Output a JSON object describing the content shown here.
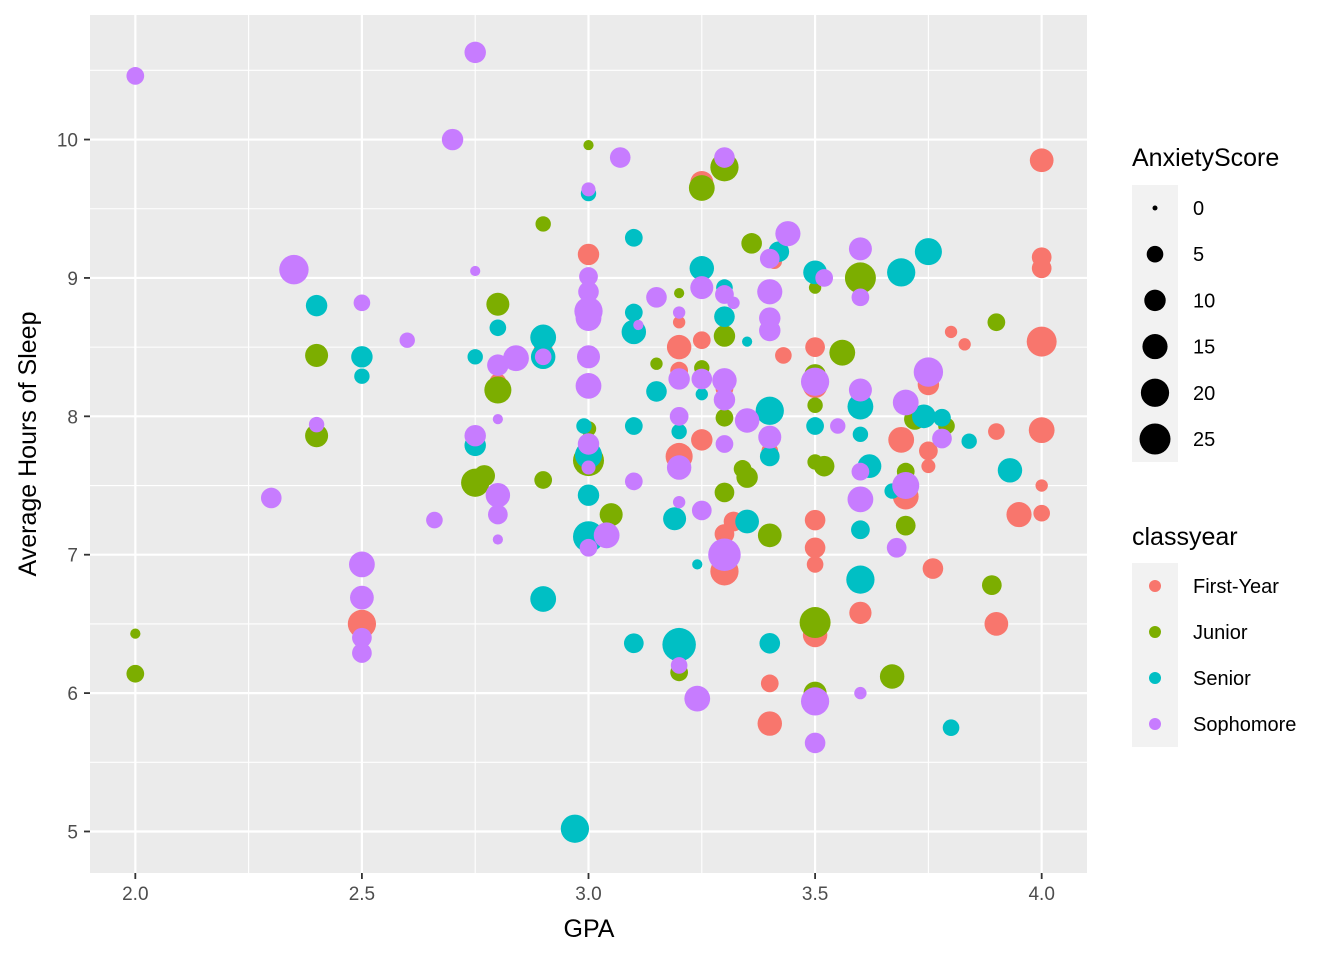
{
  "chart_data": {
    "type": "scatter",
    "xlabel": "GPA",
    "ylabel": "Average Hours of Sleep",
    "xlim": [
      1.9,
      4.1
    ],
    "ylim": [
      4.7,
      10.9
    ],
    "x_ticks": [
      2.0,
      2.5,
      3.0,
      3.5,
      4.0
    ],
    "x_tick_labels": [
      "2.0",
      "2.5",
      "3.0",
      "3.5",
      "4.0"
    ],
    "y_ticks": [
      5,
      6,
      7,
      8,
      9,
      10
    ],
    "y_tick_labels": [
      "5",
      "6",
      "7",
      "8",
      "9",
      "10"
    ],
    "grid": true,
    "legend_position": "right",
    "size_legend": {
      "title": "AnxietyScore",
      "items": [
        {
          "label": "0",
          "value": 0
        },
        {
          "label": "5",
          "value": 5
        },
        {
          "label": "10",
          "value": 10
        },
        {
          "label": "15",
          "value": 15
        },
        {
          "label": "20",
          "value": 20
        },
        {
          "label": "25",
          "value": 25
        }
      ]
    },
    "color_legend": {
      "title": "classyear",
      "items": [
        {
          "label": "First-Year",
          "color": "#F8766D"
        },
        {
          "label": "Junior",
          "color": "#7CAE00"
        },
        {
          "label": "Senior",
          "color": "#00BFC4"
        },
        {
          "label": "Sophomore",
          "color": "#C77CFF"
        }
      ]
    },
    "series": [
      {
        "name": "First-Year",
        "color": "#F8766D",
        "points": [
          [
            2.5,
            6.5,
            20
          ],
          [
            2.8,
            8.25,
            5
          ],
          [
            2.9,
            8.47,
            8
          ],
          [
            3.0,
            9.17,
            10
          ],
          [
            3.2,
            8.5,
            14
          ],
          [
            3.2,
            8.68,
            2
          ],
          [
            3.2,
            7.71,
            18
          ],
          [
            3.2,
            8.33,
            6
          ],
          [
            3.25,
            7.83,
            10
          ],
          [
            3.25,
            9.69,
            12
          ],
          [
            3.25,
            8.55,
            6
          ],
          [
            3.3,
            6.88,
            20
          ],
          [
            3.3,
            7.15,
            8
          ],
          [
            3.3,
            8.2,
            6
          ],
          [
            3.32,
            7.24,
            8
          ],
          [
            3.4,
            6.07,
            6
          ],
          [
            3.4,
            5.78,
            14
          ],
          [
            3.4,
            7.75,
            5
          ],
          [
            3.41,
            9.12,
            4
          ],
          [
            3.43,
            8.44,
            5
          ],
          [
            3.5,
            8.5,
            8
          ],
          [
            3.5,
            7.25,
            9
          ],
          [
            3.5,
            7.05,
            9
          ],
          [
            3.5,
            6.93,
            5
          ],
          [
            3.5,
            6.42,
            14
          ],
          [
            3.5,
            8.22,
            14
          ],
          [
            3.6,
            6.58,
            11
          ],
          [
            3.69,
            7.83,
            16
          ],
          [
            3.7,
            7.42,
            16
          ],
          [
            3.75,
            8.23,
            10
          ],
          [
            3.75,
            7.75,
            7
          ],
          [
            3.75,
            7.64,
            3
          ],
          [
            3.76,
            6.9,
            9
          ],
          [
            3.8,
            8.61,
            2
          ],
          [
            3.83,
            8.52,
            2
          ],
          [
            3.9,
            7.89,
            5
          ],
          [
            3.9,
            6.5,
            13
          ],
          [
            3.95,
            7.29,
            15
          ],
          [
            4.0,
            9.85,
            13
          ],
          [
            4.0,
            9.15,
            8
          ],
          [
            4.0,
            9.07,
            8
          ],
          [
            4.0,
            8.54,
            23
          ],
          [
            4.0,
            7.9,
            16
          ],
          [
            4.0,
            7.5,
            2
          ],
          [
            4.0,
            7.3,
            5
          ]
        ]
      },
      {
        "name": "Junior",
        "color": "#7CAE00",
        "points": [
          [
            2.0,
            6.43,
            1
          ],
          [
            2.0,
            6.14,
            6
          ],
          [
            2.4,
            8.44,
            12
          ],
          [
            2.4,
            7.86,
            12
          ],
          [
            2.75,
            7.52,
            20
          ],
          [
            2.77,
            7.57,
            10
          ],
          [
            2.8,
            8.81,
            12
          ],
          [
            2.8,
            8.19,
            18
          ],
          [
            2.9,
            9.39,
            4
          ],
          [
            2.9,
            7.54,
            6
          ],
          [
            3.0,
            9.96,
            1
          ],
          [
            3.0,
            8.18,
            2
          ],
          [
            3.0,
            7.91,
            4
          ],
          [
            3.0,
            7.68,
            25
          ],
          [
            3.0,
            7.43,
            8
          ],
          [
            3.05,
            7.29,
            12
          ],
          [
            3.15,
            8.38,
            2
          ],
          [
            3.2,
            8.89,
            1
          ],
          [
            3.2,
            6.15,
            6
          ],
          [
            3.25,
            9.65,
            16
          ],
          [
            3.25,
            8.35,
            4
          ],
          [
            3.3,
            9.8,
            20
          ],
          [
            3.3,
            8.58,
            10
          ],
          [
            3.3,
            7.99,
            6
          ],
          [
            3.3,
            7.45,
            8
          ],
          [
            3.34,
            7.62,
            6
          ],
          [
            3.35,
            7.56,
            10
          ],
          [
            3.36,
            9.25,
            9
          ],
          [
            3.4,
            7.14,
            13
          ],
          [
            3.5,
            8.93,
            2
          ],
          [
            3.5,
            8.3,
            10
          ],
          [
            3.5,
            8.08,
            4
          ],
          [
            3.5,
            7.67,
            4
          ],
          [
            3.5,
            6.51,
            25
          ],
          [
            3.5,
            6.0,
            12
          ],
          [
            3.52,
            7.64,
            9
          ],
          [
            3.56,
            8.46,
            16
          ],
          [
            3.6,
            9.0,
            25
          ],
          [
            3.67,
            6.12,
            14
          ],
          [
            3.7,
            7.6,
            6
          ],
          [
            3.7,
            7.21,
            8
          ],
          [
            3.72,
            7.98,
            10
          ],
          [
            3.79,
            7.93,
            5
          ],
          [
            3.89,
            6.78,
            8
          ],
          [
            3.9,
            8.68,
            6
          ]
        ]
      },
      {
        "name": "Senior",
        "color": "#00BFC4",
        "points": [
          [
            2.4,
            8.8,
            10
          ],
          [
            2.5,
            8.43,
            10
          ],
          [
            2.5,
            8.29,
            4
          ],
          [
            2.75,
            8.43,
            4
          ],
          [
            2.75,
            7.79,
            10
          ],
          [
            2.8,
            8.64,
            5
          ],
          [
            2.9,
            8.57,
            16
          ],
          [
            2.9,
            8.43,
            14
          ],
          [
            2.9,
            6.68,
            16
          ],
          [
            2.97,
            5.02,
            20
          ],
          [
            2.99,
            7.93,
            4
          ],
          [
            3.0,
            9.61,
            4
          ],
          [
            3.0,
            7.72,
            18
          ],
          [
            3.0,
            7.43,
            10
          ],
          [
            3.0,
            7.13,
            25
          ],
          [
            3.1,
            9.29,
            6
          ],
          [
            3.1,
            8.75,
            6
          ],
          [
            3.1,
            8.61,
            14
          ],
          [
            3.1,
            7.93,
            6
          ],
          [
            3.1,
            6.36,
            8
          ],
          [
            3.15,
            8.18,
            9
          ],
          [
            3.19,
            7.26,
            12
          ],
          [
            3.2,
            7.89,
            4
          ],
          [
            3.2,
            6.35,
            30
          ],
          [
            3.24,
            6.93,
            1
          ],
          [
            3.25,
            9.07,
            14
          ],
          [
            3.25,
            8.16,
            2
          ],
          [
            3.3,
            8.93,
            5
          ],
          [
            3.3,
            8.72,
            9
          ],
          [
            3.35,
            8.54,
            1
          ],
          [
            3.35,
            7.24,
            13
          ],
          [
            3.4,
            8.04,
            20
          ],
          [
            3.4,
            7.71,
            8
          ],
          [
            3.4,
            6.36,
            9
          ],
          [
            3.42,
            9.19,
            9
          ],
          [
            3.5,
            9.04,
            13
          ],
          [
            3.5,
            7.93,
            6
          ],
          [
            3.6,
            8.07,
            16
          ],
          [
            3.6,
            7.87,
            4
          ],
          [
            3.6,
            7.18,
            7
          ],
          [
            3.6,
            6.82,
            20
          ],
          [
            3.62,
            7.64,
            13
          ],
          [
            3.67,
            7.46,
            4
          ],
          [
            3.69,
            9.04,
            20
          ],
          [
            3.74,
            8.0,
            13
          ],
          [
            3.75,
            9.19,
            18
          ],
          [
            3.78,
            7.99,
            6
          ],
          [
            3.8,
            5.75,
            5
          ],
          [
            3.84,
            7.82,
            4
          ],
          [
            3.93,
            7.61,
            14
          ]
        ]
      },
      {
        "name": "Sophomore",
        "color": "#C77CFF",
        "points": [
          [
            2.0,
            10.46,
            6
          ],
          [
            2.3,
            7.41,
            9
          ],
          [
            2.35,
            9.06,
            22
          ],
          [
            2.4,
            7.94,
            4
          ],
          [
            2.5,
            8.82,
            5
          ],
          [
            2.5,
            6.93,
            16
          ],
          [
            2.5,
            6.69,
            13
          ],
          [
            2.5,
            6.4,
            8
          ],
          [
            2.5,
            6.29,
            8
          ],
          [
            2.6,
            8.55,
            4
          ],
          [
            2.66,
            7.25,
            5
          ],
          [
            2.7,
            10.0,
            10
          ],
          [
            2.75,
            10.63,
            10
          ],
          [
            2.75,
            9.05,
            1
          ],
          [
            2.75,
            7.86,
            10
          ],
          [
            2.8,
            8.37,
            10
          ],
          [
            2.8,
            7.98,
            1
          ],
          [
            2.8,
            7.43,
            14
          ],
          [
            2.8,
            7.29,
            8
          ],
          [
            2.8,
            7.11,
            1
          ],
          [
            2.84,
            8.42,
            16
          ],
          [
            2.9,
            8.43,
            5
          ],
          [
            3.0,
            9.64,
            3
          ],
          [
            3.0,
            9.01,
            7
          ],
          [
            3.0,
            8.9,
            9
          ],
          [
            3.0,
            8.76,
            20
          ],
          [
            3.0,
            8.71,
            16
          ],
          [
            3.0,
            8.43,
            12
          ],
          [
            3.0,
            8.22,
            16
          ],
          [
            3.0,
            7.8,
            10
          ],
          [
            3.0,
            7.63,
            3
          ],
          [
            3.0,
            7.05,
            6
          ],
          [
            3.04,
            7.14,
            16
          ],
          [
            3.07,
            9.87,
            9
          ],
          [
            3.1,
            7.53,
            6
          ],
          [
            3.11,
            8.66,
            1
          ],
          [
            3.15,
            8.86,
            9
          ],
          [
            3.2,
            8.75,
            2
          ],
          [
            3.2,
            8.27,
            10
          ],
          [
            3.2,
            8.0,
            7
          ],
          [
            3.2,
            7.63,
            14
          ],
          [
            3.2,
            7.38,
            2
          ],
          [
            3.2,
            6.2,
            5
          ],
          [
            3.24,
            5.96,
            16
          ],
          [
            3.25,
            8.93,
            12
          ],
          [
            3.25,
            8.27,
            9
          ],
          [
            3.25,
            7.32,
            8
          ],
          [
            3.3,
            9.87,
            9
          ],
          [
            3.3,
            8.88,
            7
          ],
          [
            3.3,
            8.26,
            14
          ],
          [
            3.3,
            8.12,
            10
          ],
          [
            3.3,
            7.8,
            6
          ],
          [
            3.3,
            7.0,
            28
          ],
          [
            3.32,
            8.82,
            2
          ],
          [
            3.35,
            7.97,
            14
          ],
          [
            3.4,
            9.14,
            8
          ],
          [
            3.4,
            8.9,
            15
          ],
          [
            3.4,
            8.71,
            10
          ],
          [
            3.4,
            8.62,
            10
          ],
          [
            3.4,
            7.85,
            12
          ],
          [
            3.44,
            9.32,
            15
          ],
          [
            3.5,
            8.25,
            20
          ],
          [
            3.5,
            5.94,
            20
          ],
          [
            3.5,
            5.64,
            9
          ],
          [
            3.52,
            9.0,
            6
          ],
          [
            3.55,
            7.93,
            4
          ],
          [
            3.6,
            9.21,
            12
          ],
          [
            3.6,
            8.86,
            6
          ],
          [
            3.6,
            8.19,
            12
          ],
          [
            3.6,
            7.6,
            6
          ],
          [
            3.6,
            7.4,
            16
          ],
          [
            3.6,
            6.0,
            2
          ],
          [
            3.68,
            7.05,
            8
          ],
          [
            3.7,
            8.1,
            16
          ],
          [
            3.7,
            7.5,
            18
          ],
          [
            3.75,
            8.32,
            22
          ],
          [
            3.78,
            7.84,
            8
          ]
        ]
      }
    ]
  }
}
